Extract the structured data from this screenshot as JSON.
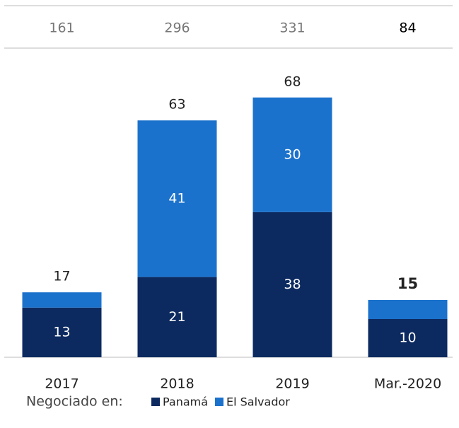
{
  "chart_data": {
    "type": "stacked_bar",
    "top_values": [
      161,
      296,
      331,
      84
    ],
    "categories": [
      "2017",
      "2018",
      "2019",
      "Mar.-2020"
    ],
    "series": [
      {
        "name": "Panamá",
        "color": "#0c2a60",
        "values": [
          13,
          21,
          38,
          10
        ]
      },
      {
        "name": "El Salvador",
        "color": "#1b72cc",
        "values": [
          4,
          41,
          30,
          5
        ],
        "value_labels": [
          null,
          "41",
          "30",
          null
        ]
      }
    ],
    "totals": [
      17,
      63,
      68,
      15
    ],
    "ylim": [
      0,
      70
    ],
    "legend_title": "Negociado en:"
  }
}
